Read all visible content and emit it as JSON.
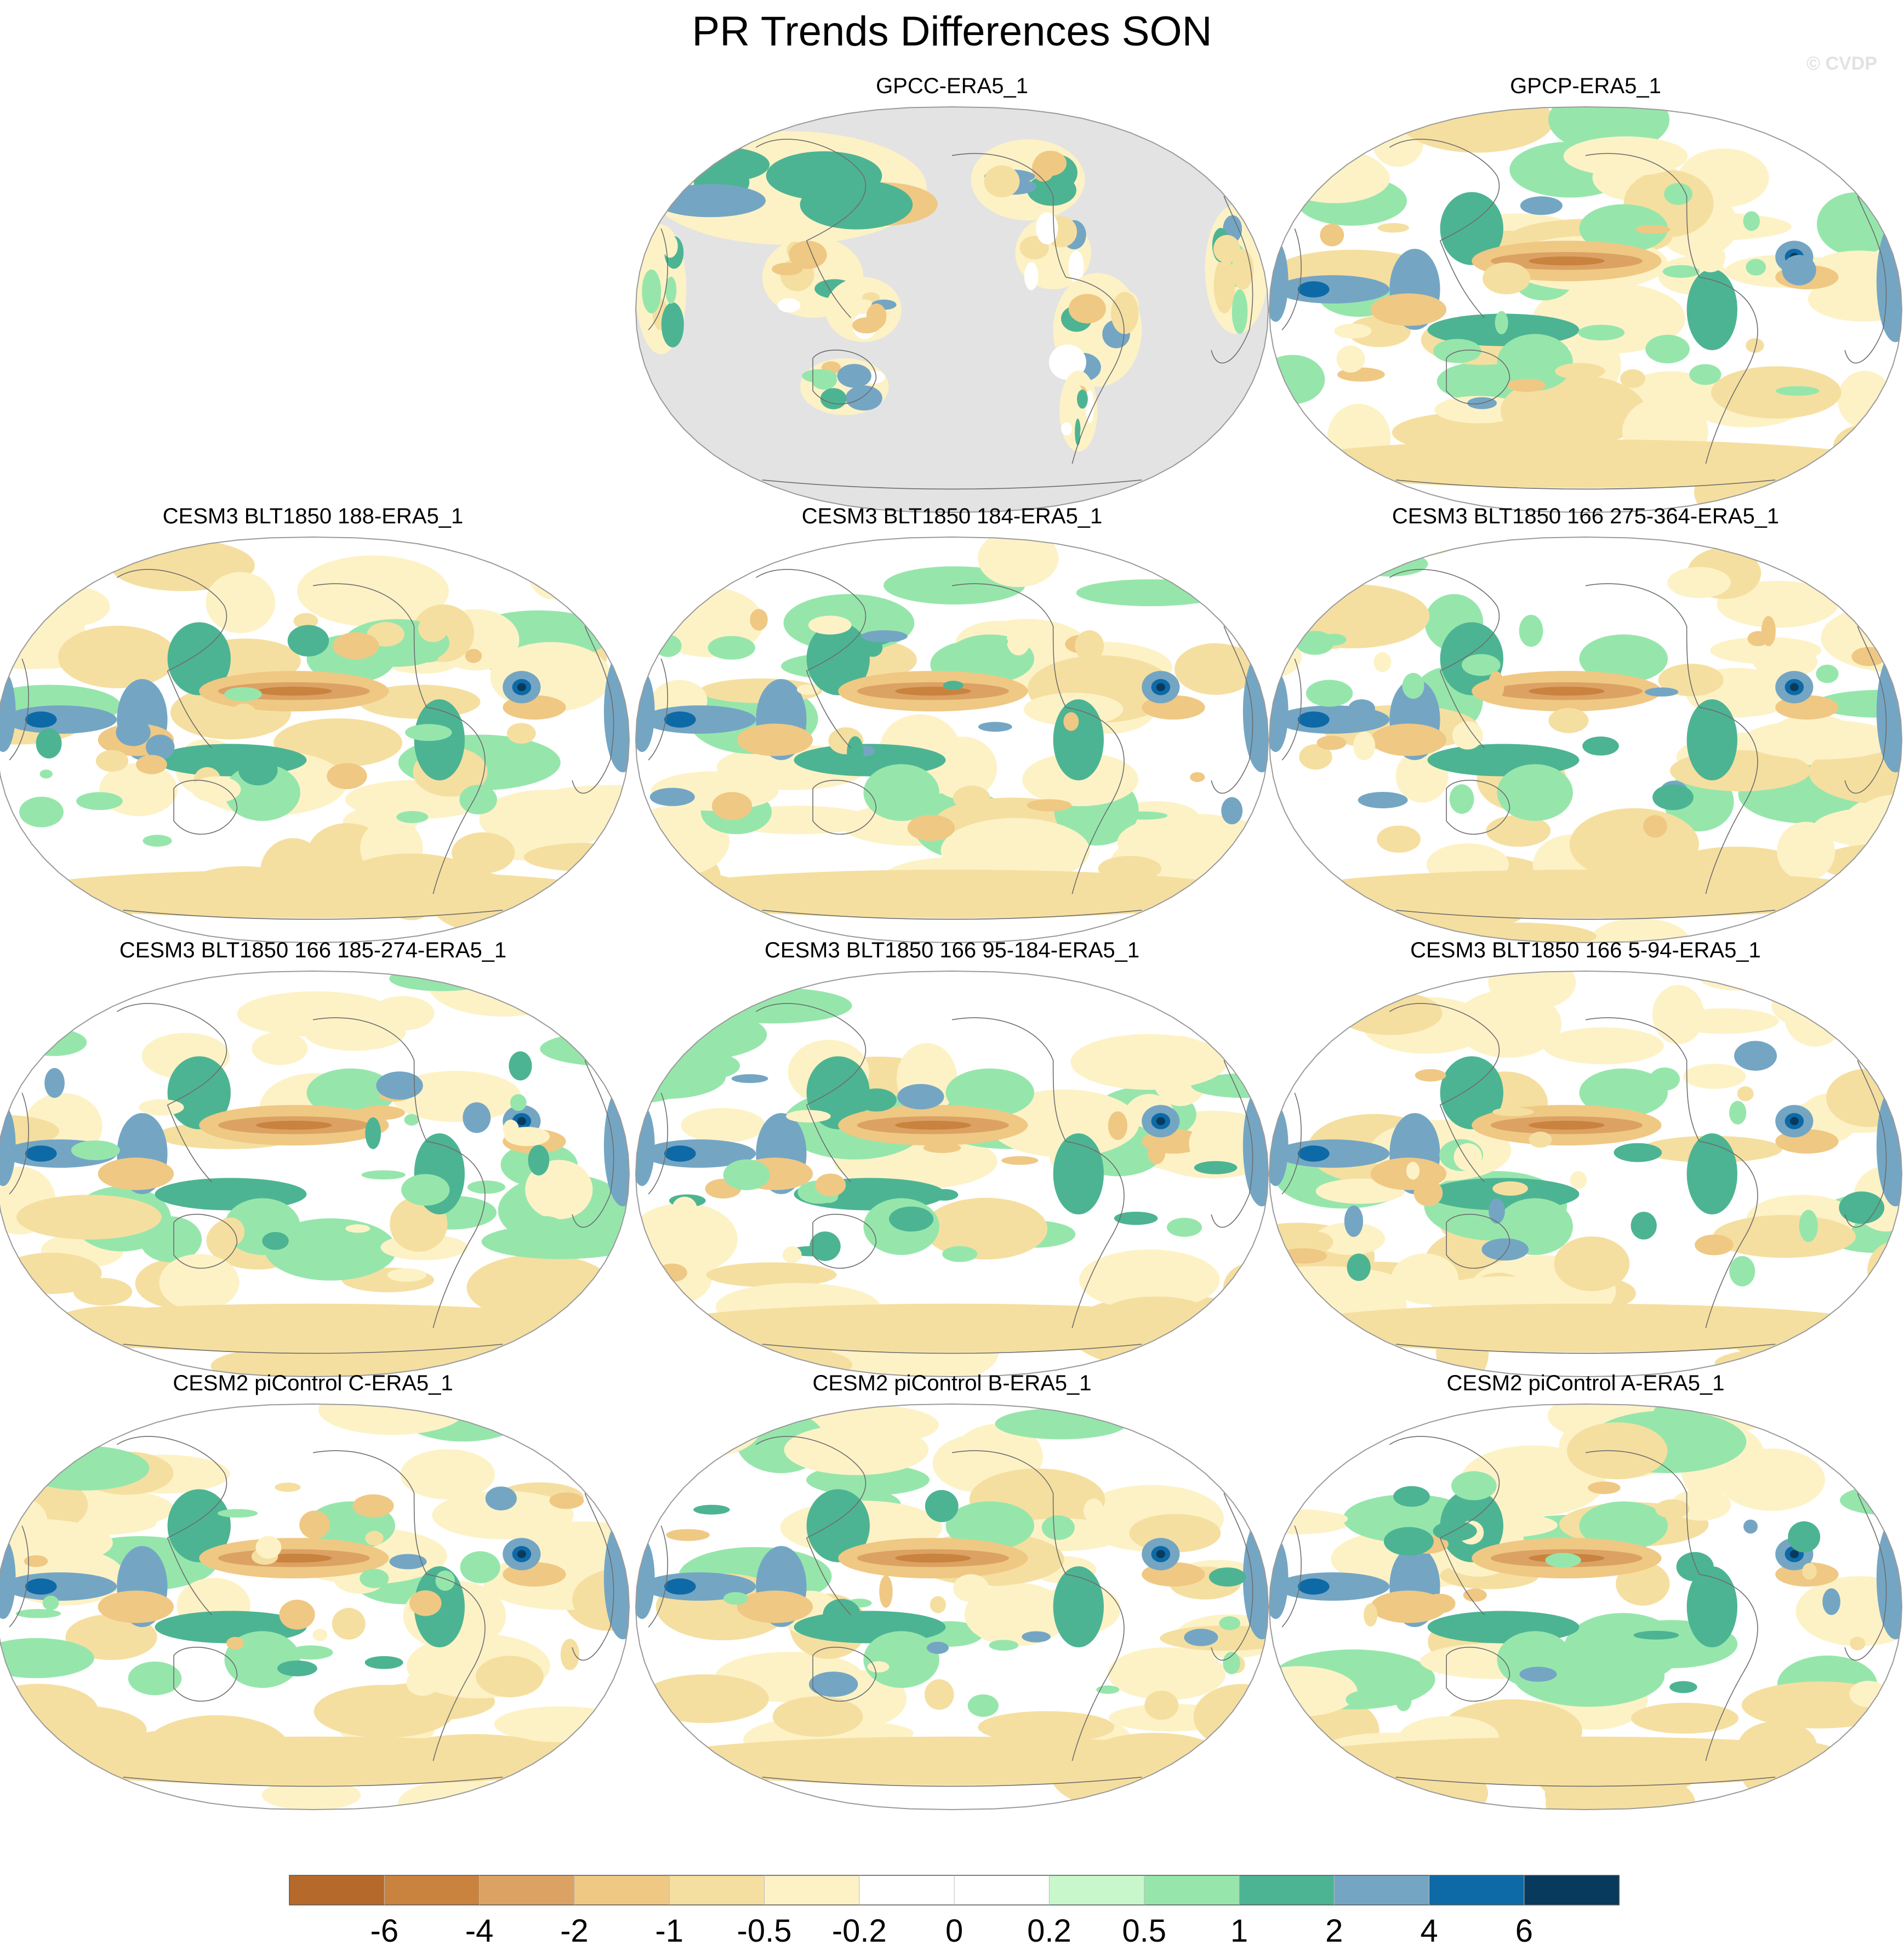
{
  "figure": {
    "title": "PR Trends Differences SON",
    "copyright": "© CVDP"
  },
  "chart_data": {
    "type": "heatmap",
    "title": "PR Trends Differences SON",
    "projection": "robinson-like global map, Pacific-centred",
    "layout": "4 rows x 3 columns, top-left panel empty",
    "panels": [
      {
        "name": "GPCC-ERA5_1",
        "row": 0,
        "col": 1,
        "dataset": "land-only (ocean masked grey)",
        "features": [
          {
            "region": "land",
            "value_range": [
              -1,
              1
            ]
          },
          {
            "region": "maritime continent",
            "value_range": [
              -2,
              2
            ]
          },
          {
            "region": "tropical south america",
            "value_range": [
              -1,
              2
            ]
          }
        ]
      },
      {
        "name": "GPCP-ERA5_1",
        "row": 0,
        "col": 2,
        "dataset": "global",
        "features": [
          {
            "region": "central equatorial pacific",
            "value_range": [
              -6,
              -4
            ]
          },
          {
            "region": "equatorial indian ocean",
            "value_range": [
              2,
              6
            ]
          },
          {
            "region": "equatorial atlantic",
            "value_range": [
              2,
              6
            ]
          },
          {
            "region": "southern ocean",
            "value_range": [
              -2,
              -0.5
            ]
          }
        ]
      },
      {
        "name": "CESM3 BLT1850 188-ERA5_1",
        "row": 1,
        "col": 0
      },
      {
        "name": "CESM3 BLT1850 184-ERA5_1",
        "row": 1,
        "col": 1
      },
      {
        "name": "CESM3 BLT1850 166 275-364-ERA5_1",
        "row": 1,
        "col": 2
      },
      {
        "name": "CESM3 BLT1850 166 185-274-ERA5_1",
        "row": 2,
        "col": 0
      },
      {
        "name": "CESM3 BLT1850 166 95-184-ERA5_1",
        "row": 2,
        "col": 1
      },
      {
        "name": "CESM3 BLT1850 166 5-94-ERA5_1",
        "row": 2,
        "col": 2
      },
      {
        "name": "CESM2 piControl C-ERA5_1",
        "row": 3,
        "col": 0
      },
      {
        "name": "CESM2 piControl B-ERA5_1",
        "row": 3,
        "col": 1
      },
      {
        "name": "CESM2 piControl A-ERA5_1",
        "row": 3,
        "col": 2
      }
    ],
    "model_panel_features": [
      {
        "region": "central equatorial pacific",
        "value_range": [
          -6,
          -2
        ]
      },
      {
        "region": "equatorial atlantic",
        "value_range": [
          2,
          6
        ]
      },
      {
        "region": "equatorial indian ocean / maritime continent",
        "value_range": [
          1,
          4
        ]
      },
      {
        "region": "south pacific convergence zone",
        "value_range": [
          0.5,
          2
        ]
      },
      {
        "region": "southern hemisphere mid-latitudes",
        "value_range": [
          -2,
          -0.5
        ]
      },
      {
        "region": "eastern equatorial pacific",
        "value_range": [
          -2,
          -0.5
        ]
      }
    ],
    "colorbar": {
      "levels": [
        -6,
        -4,
        -2,
        -1,
        -0.5,
        -0.2,
        0,
        0.2,
        0.5,
        1,
        2,
        4,
        6
      ],
      "tick_labels": [
        "-6",
        "-4",
        "-2",
        "-1",
        "-0.5",
        "-0.2",
        "0",
        "0.2",
        "0.5",
        "1",
        "2",
        "4",
        "6"
      ],
      "colors": [
        "#b5692a",
        "#c9833f",
        "#dca264",
        "#efc884",
        "#f5dfa0",
        "#fdf2c6",
        "#ffffff",
        "#ffffff",
        "#c8f7cc",
        "#96e6ac",
        "#4db493",
        "#74a6c4",
        "#0e6aa6",
        "#073a5c"
      ]
    }
  }
}
